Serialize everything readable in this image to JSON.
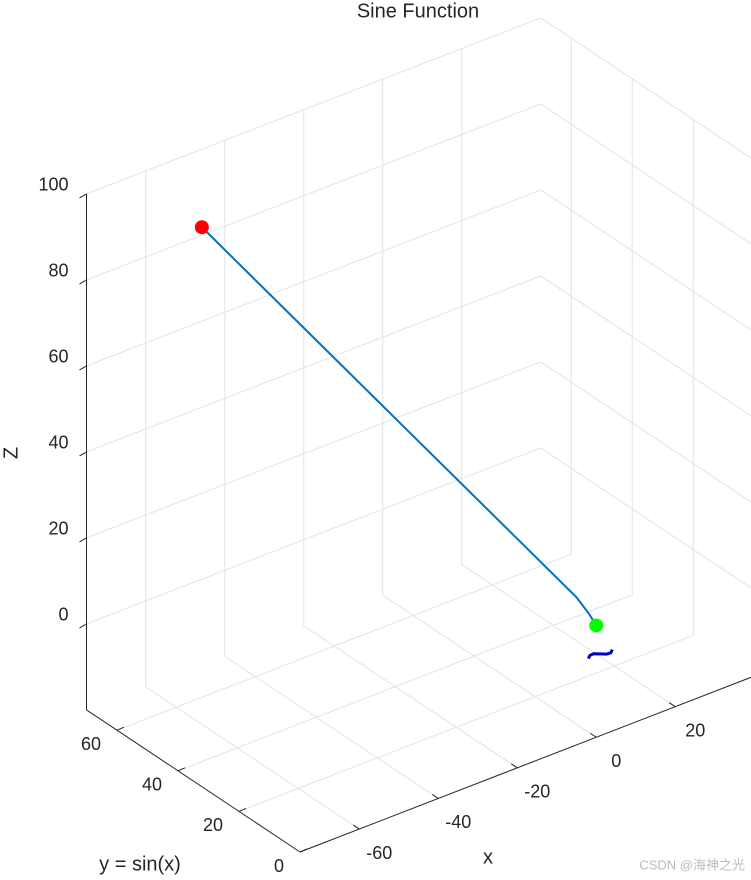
{
  "chart_data": {
    "type": "line3d",
    "title": "Sine Function",
    "xlabel": "x",
    "ylabel": "y = sin(x)",
    "zlabel": "Z",
    "xlim": [
      -75,
      40
    ],
    "ylim": [
      0,
      70
    ],
    "zlim": [
      -20,
      100
    ],
    "xticks": [
      -60,
      -40,
      -20,
      0,
      20
    ],
    "yticks": [
      0,
      20,
      40,
      60
    ],
    "zticks": [
      0,
      20,
      40,
      60,
      80,
      100
    ],
    "grid": true,
    "series": [
      {
        "color": "#0072bd",
        "x": [
          -60,
          -45,
          -30,
          -15,
          -3,
          -1,
          0
        ],
        "y": [
          51.6,
          38.7,
          25.8,
          12.9,
          2.6,
          1,
          0
        ],
        "z": [
          95.6,
          73.7,
          51.8,
          29.9,
          12.4,
          8.5,
          6
        ]
      },
      {
        "color": "#0000cc",
        "x": [
          -2,
          -1,
          0,
          1,
          2,
          3,
          4
        ],
        "y": [
          0,
          0.8,
          0.9,
          0.1,
          -0.8,
          -0.9,
          -0.1
        ],
        "z": [
          -1,
          -1,
          -1,
          -1,
          -1,
          -1,
          -1
        ]
      }
    ],
    "markers": [
      {
        "color": "#ff0000",
        "x": -60,
        "y": 51.6,
        "z": 95.6
      },
      {
        "color": "#00ff00",
        "x": 0,
        "y": 0,
        "z": 6
      }
    ],
    "watermark": "CSDN @海神之光"
  }
}
